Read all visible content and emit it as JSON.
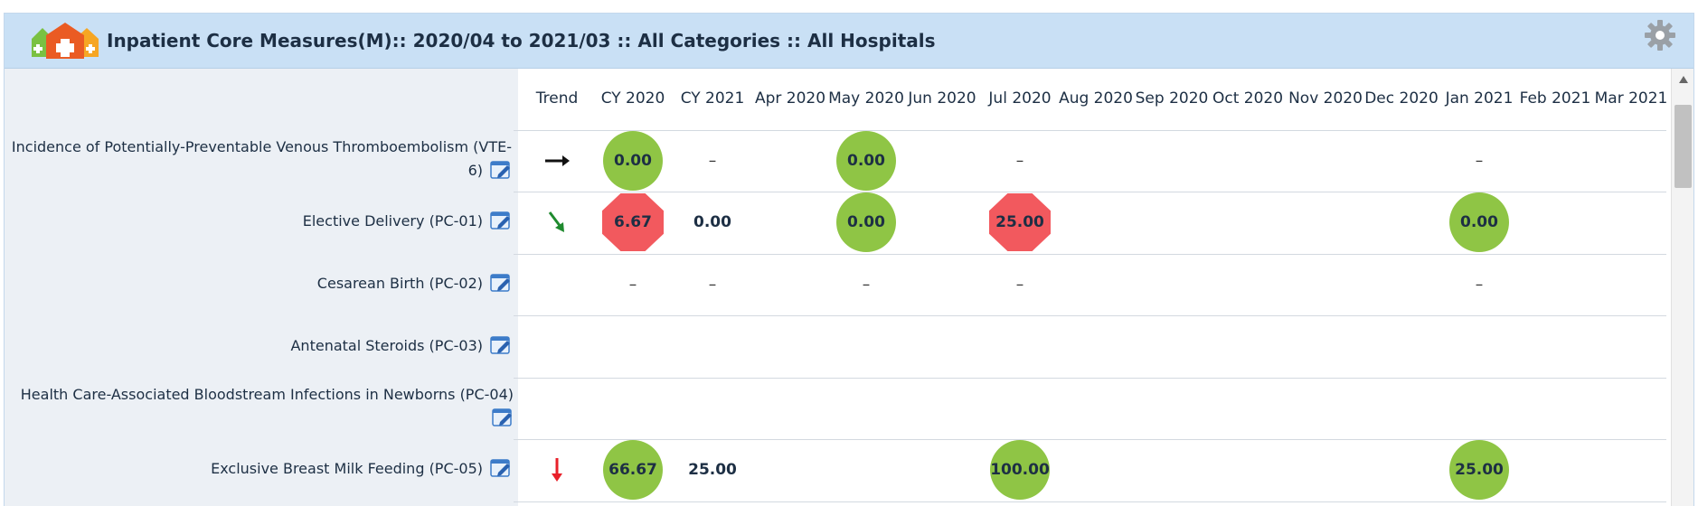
{
  "header": {
    "title": "Inpatient Core Measures(M):: 2020/04 to 2021/03 :: All Categories :: All Hospitals",
    "logo_icon": "hospital-houses-logo",
    "settings_icon": "gear-icon"
  },
  "columns": [
    "Trend",
    "CY 2020",
    "CY 2021",
    "Apr 2020",
    "May 2020",
    "Jun 2020",
    "Jul 2020",
    "Aug 2020",
    "Sep 2020",
    "Oct 2020",
    "Nov 2020",
    "Dec 2020",
    "Jan 2021",
    "Feb 2021",
    "Mar 2021"
  ],
  "rows": [
    {
      "label_line1": "Incidence of Potentially-Preventable Venous Thromboembolism (VTE-",
      "label_line2": "6)",
      "trend": "flat",
      "cy2020": "0.00",
      "cy2021": "–",
      "may2020": "0.00",
      "jul2020": "–",
      "jan2021": "–"
    },
    {
      "label": "Elective Delivery (PC-01)",
      "trend": "down-good",
      "cy2020": "6.67",
      "cy2021": "0.00",
      "may2020": "0.00",
      "jul2020": "25.00",
      "jan2021": "0.00"
    },
    {
      "label": "Cesarean Birth (PC-02)",
      "cy2020": "–",
      "cy2021": "–",
      "may2020": "–",
      "jul2020": "–",
      "jan2021": "–"
    },
    {
      "label": "Antenatal Steroids (PC-03)"
    },
    {
      "label": "Health Care-Associated Bloodstream Infections in Newborns (PC-04)"
    },
    {
      "label": "Exclusive Breast Milk Feeding (PC-05)",
      "trend": "down-bad",
      "cy2020": "66.67",
      "cy2021": "25.00",
      "jul2020": "100.00",
      "jan2021": "25.00"
    }
  ],
  "colors": {
    "met": "#8fc545",
    "not_met": "#f2595e",
    "header_bg": "#c9e0f5"
  }
}
